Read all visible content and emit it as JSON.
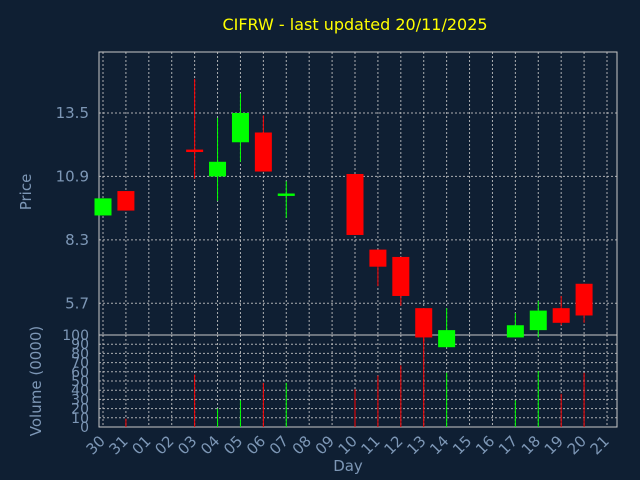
{
  "chart_data": {
    "type": "candlestick",
    "title": "CIFRW - last updated 20/11/2025",
    "xlabel": "Day",
    "ylabel_price": "Price",
    "ylabel_volume": "Volume (0000)",
    "x_tick_labels": [
      "30",
      "31",
      "01",
      "02",
      "03",
      "04",
      "05",
      "06",
      "07",
      "08",
      "09",
      "10",
      "11",
      "12",
      "13",
      "14",
      "15",
      "16",
      "17",
      "18",
      "19",
      "20",
      "21"
    ],
    "price_ticks": [
      "13.5",
      "10.9",
      "8.3",
      "5.7"
    ],
    "price_tick_values": [
      13.5,
      10.9,
      8.3,
      5.7
    ],
    "volume_ticks": [
      "0",
      "10",
      "20",
      "30",
      "40",
      "50",
      "60",
      "70",
      "80",
      "90",
      "100"
    ],
    "price_ylim": [
      4.4,
      16.0
    ],
    "volume_ylim": [
      0,
      100
    ],
    "x_range": [
      0,
      22
    ],
    "colors": {
      "up": "#00ff00",
      "down": "#ff0000",
      "background": "#0f1f33",
      "title": "#ffff00",
      "axis_text": "#7d97b6",
      "grid": "#c8c8c8"
    },
    "candles": [
      {
        "x": 0,
        "open": 9.3,
        "close": 10.0,
        "high": 10.0,
        "low": 9.3,
        "volume": 0
      },
      {
        "x": 1,
        "open": 10.3,
        "close": 9.5,
        "high": 10.3,
        "low": 9.5,
        "volume": 9
      },
      {
        "x": 4,
        "open": 12.0,
        "close": 11.9,
        "high": 14.9,
        "low": 10.8,
        "volume": 57
      },
      {
        "x": 5,
        "open": 10.9,
        "close": 11.5,
        "high": 13.3,
        "low": 9.9,
        "volume": 20
      },
      {
        "x": 6,
        "open": 12.3,
        "close": 13.5,
        "high": 14.3,
        "low": 11.5,
        "volume": 29
      },
      {
        "x": 7,
        "open": 12.7,
        "close": 11.1,
        "high": 13.4,
        "low": 11.1,
        "volume": 48
      },
      {
        "x": 8,
        "open": 10.1,
        "close": 10.2,
        "high": 10.7,
        "low": 9.2,
        "volume": 48
      },
      {
        "x": 11,
        "open": 11.0,
        "close": 8.5,
        "high": 11.0,
        "low": 8.5,
        "volume": 41
      },
      {
        "x": 12,
        "open": 7.9,
        "close": 7.2,
        "high": 7.9,
        "low": 6.4,
        "volume": 56
      },
      {
        "x": 13,
        "open": 7.6,
        "close": 6.0,
        "high": 7.6,
        "low": 5.6,
        "volume": 67
      },
      {
        "x": 14,
        "open": 5.5,
        "close": 4.3,
        "high": 5.5,
        "low": 4.1,
        "volume": 97
      },
      {
        "x": 15,
        "open": 3.9,
        "close": 4.6,
        "high": 5.5,
        "low": 3.9,
        "volume": 59
      },
      {
        "x": 18,
        "open": 4.3,
        "close": 4.8,
        "high": 5.3,
        "low": 4.3,
        "volume": 29
      },
      {
        "x": 19,
        "open": 4.6,
        "close": 5.4,
        "high": 5.8,
        "low": 4.3,
        "volume": 61
      },
      {
        "x": 20,
        "open": 5.5,
        "close": 4.9,
        "high": 6.0,
        "low": 4.8,
        "volume": 36
      },
      {
        "x": 21,
        "open": 6.5,
        "close": 5.2,
        "high": 6.5,
        "low": 4.9,
        "volume": 59
      }
    ]
  }
}
